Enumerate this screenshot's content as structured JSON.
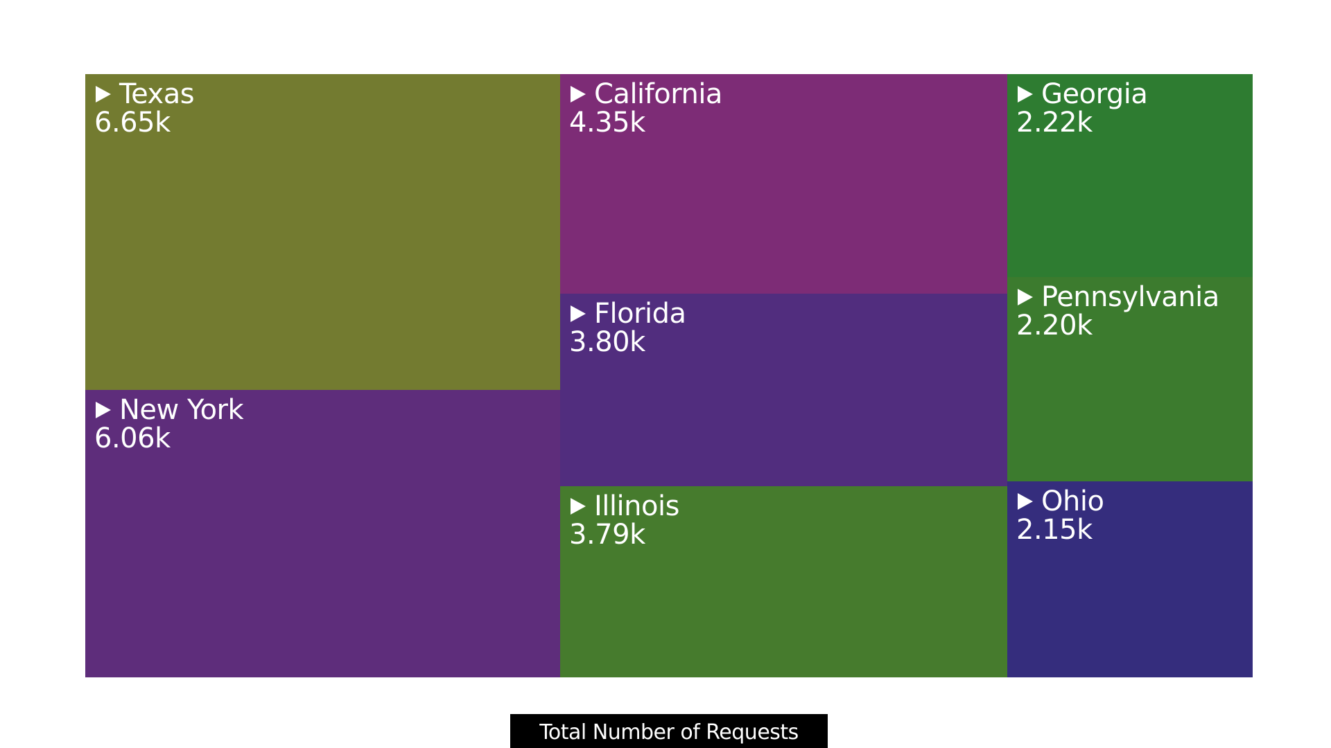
{
  "chart_data": {
    "type": "treemap",
    "caption": "Total Number of Requests",
    "items": [
      {
        "name": "Texas",
        "value": 6650,
        "label": "6.65k",
        "color": "#737b30"
      },
      {
        "name": "New York",
        "value": 6060,
        "label": "6.06k",
        "color": "#5e2d7b"
      },
      {
        "name": "California",
        "value": 4350,
        "label": "4.35k",
        "color": "#7d2c76"
      },
      {
        "name": "Florida",
        "value": 3800,
        "label": "3.80k",
        "color": "#512d7e"
      },
      {
        "name": "Illinois",
        "value": 3790,
        "label": "3.79k",
        "color": "#467b2d"
      },
      {
        "name": "Georgia",
        "value": 2220,
        "label": "2.22k",
        "color": "#2e7c31"
      },
      {
        "name": "Pennsylvania",
        "value": 2200,
        "label": "2.20k",
        "color": "#3c7b2e"
      },
      {
        "name": "Ohio",
        "value": 2150,
        "label": "2.15k",
        "color": "#352d7d"
      }
    ]
  }
}
